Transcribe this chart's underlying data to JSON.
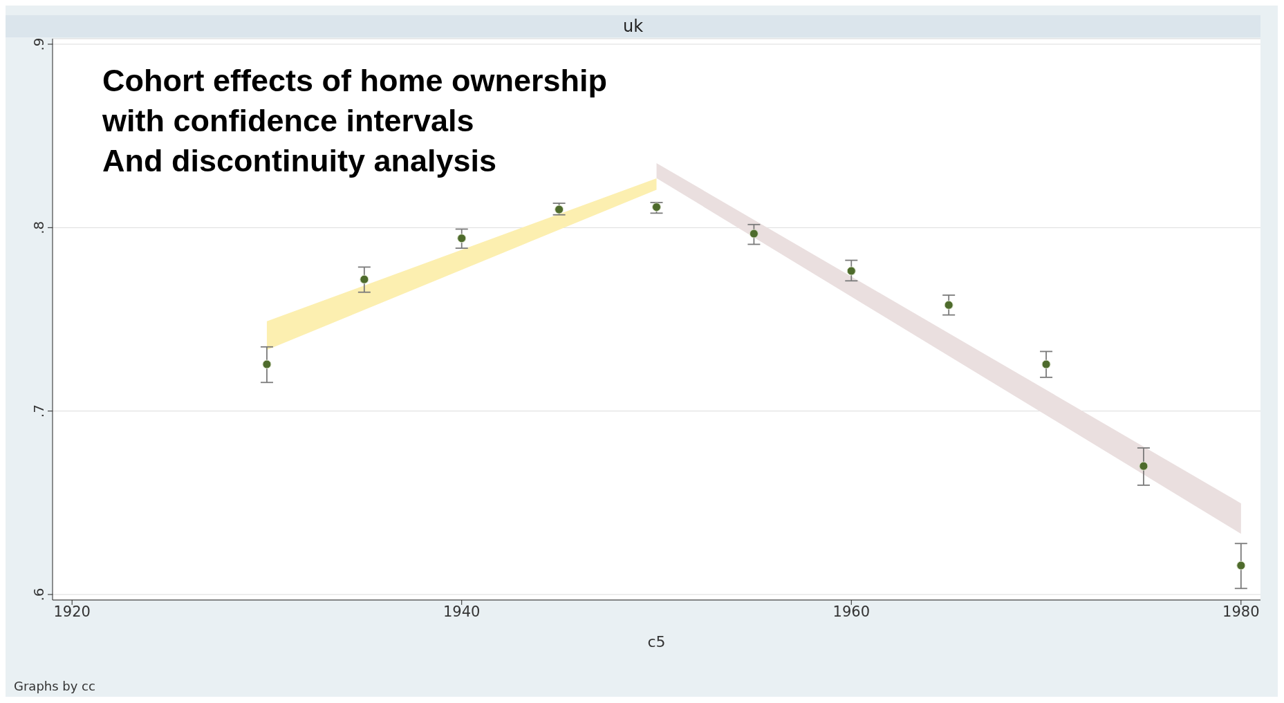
{
  "chart_data": {
    "type": "scatter",
    "title": "Cohort effects of home ownership\nwith confidence intervals\nAnd discontinuity analysis",
    "subtitle": "uk",
    "xlabel": "c5",
    "annotations": [
      "Graphs by cc"
    ],
    "x": [
      1930,
      1935,
      1940,
      1945,
      1950,
      1955,
      1960,
      1965,
      1970,
      1975,
      1980
    ],
    "series": [
      {
        "color": "#4e6b2c",
        "values": [
          0.7255,
          0.7718,
          0.7942,
          0.8099,
          0.8112,
          0.7967,
          0.7764,
          0.7578,
          0.7255,
          0.67,
          0.6158
        ],
        "errors": [
          [
            0.7156,
            0.735
          ],
          [
            0.7648,
            0.7785
          ],
          [
            0.7888,
            0.7992
          ],
          [
            0.807,
            0.8133
          ],
          [
            0.8079,
            0.8137
          ],
          [
            0.7909,
            0.8017
          ],
          [
            0.771,
            0.7822
          ],
          [
            0.7524,
            0.7632
          ],
          [
            0.7184,
            0.7325
          ],
          [
            0.6596,
            0.6799
          ],
          [
            0.6033,
            0.6278
          ]
        ]
      },
      {
        "type": "area",
        "color": "#fcefb0",
        "x": [
          1930,
          1950
        ],
        "values": [
          null,
          null
        ],
        "lower": [
          0.7333,
          0.8207
        ],
        "upper": [
          0.749,
          0.8269
        ]
      },
      {
        "type": "area",
        "color": "#eadfdf",
        "x": [
          1950,
          1980
        ],
        "values": [
          null,
          null
        ],
        "lower": [
          0.827,
          0.6331
        ],
        "upper": [
          0.8352,
          0.6497
        ]
      }
    ],
    "xlim": [
      1919,
      1981
    ],
    "xticks": [
      1920,
      1940,
      1960,
      1980
    ],
    "ylim": [
      0.597,
      0.903
    ],
    "yticks": [
      {
        "value": 0.6,
        "label": ".6"
      },
      {
        "value": 0.7,
        "label": ".7"
      },
      {
        "value": 0.8,
        "label": ".8"
      },
      {
        "value": 0.9,
        "label": ".9"
      }
    ],
    "grid": "y",
    "legend": false,
    "marker": "circle"
  }
}
